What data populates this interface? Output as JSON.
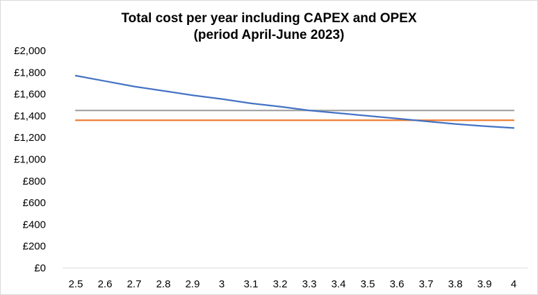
{
  "chart_data": {
    "type": "line",
    "title": "Total cost per year including CAPEX and OPEX",
    "subtitle": "(period April-June 2023)",
    "xlabel": "",
    "ylabel": "",
    "x": [
      "2.5",
      "2.6",
      "2.7",
      "2.8",
      "2.9",
      "3",
      "3.1",
      "3.2",
      "3.3",
      "3.4",
      "3.5",
      "3.6",
      "3.7",
      "3.8",
      "3.9",
      "4"
    ],
    "ylim": [
      0,
      2000
    ],
    "y_ticks": [
      "£0",
      "£200",
      "£400",
      "£600",
      "£800",
      "£1,000",
      "£1,200",
      "£1,400",
      "£1,600",
      "£1,800",
      "£2,000"
    ],
    "grid": false,
    "legend": "none",
    "series": [
      {
        "color": "#4472c4",
        "values": [
          1770,
          1720,
          1670,
          1630,
          1590,
          1555,
          1515,
          1485,
          1450,
          1425,
          1400,
          1375,
          1350,
          1325,
          1305,
          1288
        ]
      },
      {
        "color": "#a5a5a5",
        "values": [
          1450,
          1450,
          1450,
          1450,
          1450,
          1450,
          1450,
          1450,
          1450,
          1450,
          1450,
          1450,
          1450,
          1450,
          1450,
          1450
        ]
      },
      {
        "color": "#ed7d31",
        "values": [
          1360,
          1360,
          1360,
          1360,
          1360,
          1360,
          1360,
          1360,
          1360,
          1360,
          1360,
          1360,
          1360,
          1360,
          1360,
          1360
        ]
      }
    ],
    "axis_color": "#d9d9d9"
  }
}
